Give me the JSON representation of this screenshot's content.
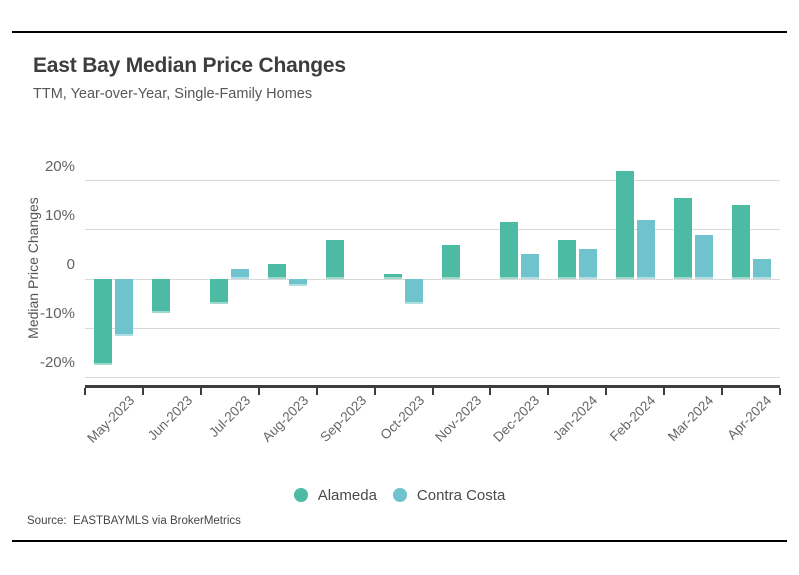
{
  "header": {
    "title": "East Bay Median Price Changes",
    "subtitle": "TTM, Year-over-Year, Single-Family Homes"
  },
  "footer": {
    "source": "Source:  EASTBAYMLS via BrokerMetrics"
  },
  "chart_data": {
    "type": "bar",
    "title": "East Bay Median Price Changes",
    "subtitle": "TTM, Year-over-Year, Single-Family Homes",
    "ylabel": "Median Price Changes",
    "unit": "%",
    "ylim": [
      -22,
      24
    ],
    "grid": true,
    "legend_position": "bottom",
    "yticks": [
      {
        "value": 20,
        "label": "20%"
      },
      {
        "value": 10,
        "label": "10%"
      },
      {
        "value": 0,
        "label": "0"
      },
      {
        "value": -10,
        "label": "-10%"
      },
      {
        "value": -20,
        "label": "-20%"
      }
    ],
    "categories": [
      "May-2023",
      "Jun-2023",
      "Jul-2023",
      "Aug-2023",
      "Sep-2023",
      "Oct-2023",
      "Nov-2023",
      "Dec-2023",
      "Jan-2024",
      "Feb-2024",
      "Mar-2024",
      "Apr-2024"
    ],
    "series": [
      {
        "name": "Alameda",
        "color": "#4dbaa4",
        "values": [
          -17.5,
          -7,
          -5,
          3,
          8,
          1,
          7,
          11.5,
          8,
          22,
          16.5,
          15
        ]
      },
      {
        "name": "Contra Costa",
        "color": "#6ec3cc",
        "values": [
          -11.5,
          null,
          2,
          -1.5,
          null,
          -5,
          null,
          5,
          6,
          12,
          9,
          4
        ]
      }
    ]
  }
}
